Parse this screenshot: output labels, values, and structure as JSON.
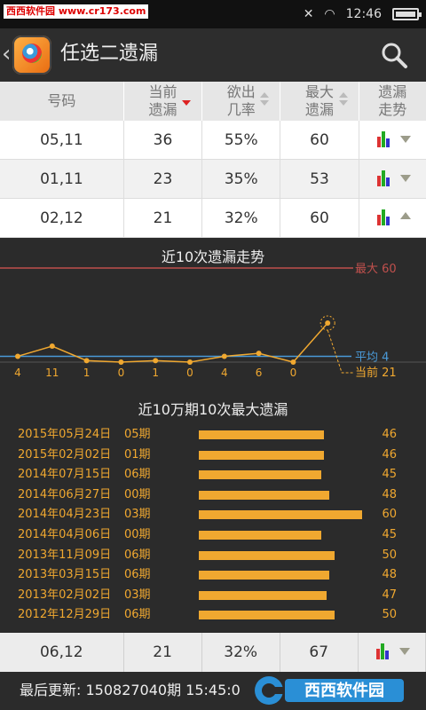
{
  "status_bar": {
    "watermark": "西西软件园 www.cr173.com",
    "time": "12:46"
  },
  "app_bar": {
    "title": "任选二遗漏"
  },
  "table": {
    "headers": [
      {
        "line1": "号码",
        "line2": ""
      },
      {
        "line1": "当前",
        "line2": "遗漏"
      },
      {
        "line1": "欲出",
        "line2": "几率"
      },
      {
        "line1": "最大",
        "line2": "遗漏"
      },
      {
        "line1": "遗漏",
        "line2": "走势"
      }
    ],
    "rows": [
      {
        "number": "05,11",
        "current": "36",
        "probability": "55%",
        "max": "60",
        "arrow": "down"
      },
      {
        "number": "01,11",
        "current": "23",
        "probability": "35%",
        "max": "53",
        "arrow": "down"
      },
      {
        "number": "02,12",
        "current": "21",
        "probability": "32%",
        "max": "60",
        "arrow": "up"
      }
    ],
    "bottom_row": {
      "number": "06,12",
      "current": "21",
      "probability": "32%",
      "max": "67"
    }
  },
  "trend_chart": {
    "title": "近10次遗漏走势",
    "max_label": "最大 60",
    "avg_label": "平均 4",
    "current_label": "当前 21",
    "colors": {
      "max_line": "#c0504d",
      "avg_line": "#4a9ad8",
      "series": "#f0a830"
    }
  },
  "max_chart": {
    "title": "近10万期10次最大遗漏",
    "scale_max": 60
  },
  "chart_data": [
    {
      "type": "line",
      "title": "近10次遗漏走势",
      "x": [
        1,
        2,
        3,
        4,
        5,
        6,
        7,
        8,
        9,
        10
      ],
      "tick_labels": [
        "4",
        "11",
        "1",
        "0",
        "1",
        "0",
        "4",
        "6",
        "0",
        ""
      ],
      "values": [
        4,
        11,
        1,
        0,
        1,
        0,
        4,
        6,
        0,
        21
      ],
      "reference_lines": {
        "max": 60,
        "average": 4,
        "current": 21
      }
    },
    {
      "type": "bar",
      "title": "近10万期10次最大遗漏",
      "categories": [
        "2015年05月24日 05期",
        "2015年02月02日 01期",
        "2014年07月15日 06期",
        "2014年06月27日 00期",
        "2014年04月23日 03期",
        "2014年04月06日 00期",
        "2013年11月09日 06期",
        "2013年03月15日 06期",
        "2013年02月02日 03期",
        "2012年12月29日 06期"
      ],
      "dates": [
        "2015年05月24日",
        "2015年02月02日",
        "2014年07月15日",
        "2014年06月27日",
        "2014年04月23日",
        "2014年04月06日",
        "2013年11月09日",
        "2013年03月15日",
        "2013年02月02日",
        "2012年12月29日"
      ],
      "periods": [
        "05期",
        "01期",
        "06期",
        "00期",
        "03期",
        "00期",
        "06期",
        "06期",
        "03期",
        "06期"
      ],
      "values": [
        46,
        46,
        45,
        48,
        60,
        45,
        50,
        48,
        47,
        50
      ]
    }
  ],
  "footer": {
    "text": "最后更新: 150827040期  15:45:0",
    "logo_text": "西西软件园"
  }
}
